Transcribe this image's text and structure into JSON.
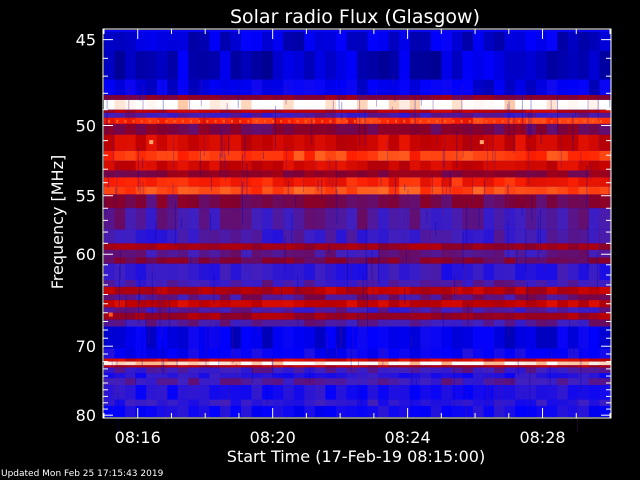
{
  "chart_data": {
    "type": "heatmap",
    "title": "Solar radio Flux (Glasgow)",
    "xlabel": "Start Time (17-Feb-19 08:15:00)",
    "ylabel": "Frequency [MHz]",
    "x_ticks": [
      "08:16",
      "08:20",
      "08:24",
      "08:28"
    ],
    "x_tick_minutes": [
      1,
      5,
      9,
      13
    ],
    "x_range_minutes": [
      0,
      15
    ],
    "y_ticks": [
      45,
      50,
      55,
      60,
      70,
      80
    ],
    "y_range_mhz": [
      44.5,
      80.3
    ],
    "y_scale": "reciprocal",
    "colormap": [
      "#000080",
      "#0000ff",
      "#4020c0",
      "#800030",
      "#c00000",
      "#ff2000",
      "#ff8030",
      "#ffffff"
    ],
    "background_level": 0.17,
    "bands": [
      {
        "f_start": 44.6,
        "f_end": 45.6,
        "level": 0.1
      },
      {
        "f_start": 45.6,
        "f_end": 47.2,
        "level": 0.08
      },
      {
        "f_start": 47.2,
        "f_end": 48.1,
        "level": 0.12
      },
      {
        "f_start": 48.1,
        "f_end": 48.4,
        "level": 0.45
      },
      {
        "f_start": 48.4,
        "f_end": 49.0,
        "level": 1.0
      },
      {
        "f_start": 49.0,
        "f_end": 49.2,
        "level": 0.55
      },
      {
        "f_start": 49.2,
        "f_end": 49.5,
        "level": 0.3
      },
      {
        "f_start": 49.5,
        "f_end": 49.9,
        "level": 0.72
      },
      {
        "f_start": 49.9,
        "f_end": 50.6,
        "level": 0.42
      },
      {
        "f_start": 50.6,
        "f_end": 51.7,
        "level": 0.6
      },
      {
        "f_start": 51.7,
        "f_end": 52.4,
        "level": 0.75
      },
      {
        "f_start": 52.4,
        "f_end": 53.1,
        "level": 0.6
      },
      {
        "f_start": 53.1,
        "f_end": 53.6,
        "level": 0.45
      },
      {
        "f_start": 53.6,
        "f_end": 54.3,
        "level": 0.7
      },
      {
        "f_start": 54.3,
        "f_end": 54.9,
        "level": 0.78
      },
      {
        "f_start": 54.9,
        "f_end": 56.0,
        "level": 0.4
      },
      {
        "f_start": 56.0,
        "f_end": 57.8,
        "level": 0.32
      },
      {
        "f_start": 57.8,
        "f_end": 59.0,
        "level": 0.28
      },
      {
        "f_start": 59.0,
        "f_end": 59.6,
        "level": 0.5
      },
      {
        "f_start": 59.6,
        "f_end": 60.3,
        "level": 0.33
      },
      {
        "f_start": 60.3,
        "f_end": 60.9,
        "level": 0.42
      },
      {
        "f_start": 60.9,
        "f_end": 62.5,
        "level": 0.25
      },
      {
        "f_start": 62.5,
        "f_end": 63.2,
        "level": 0.3
      },
      {
        "f_start": 63.2,
        "f_end": 64.0,
        "level": 0.55
      },
      {
        "f_start": 64.0,
        "f_end": 64.6,
        "level": 0.35
      },
      {
        "f_start": 64.6,
        "f_end": 65.4,
        "level": 0.58
      },
      {
        "f_start": 65.4,
        "f_end": 66.0,
        "level": 0.3
      },
      {
        "f_start": 66.0,
        "f_end": 66.8,
        "level": 0.5
      },
      {
        "f_start": 66.8,
        "f_end": 67.6,
        "level": 0.32
      },
      {
        "f_start": 67.6,
        "f_end": 70.3,
        "level": 0.12
      },
      {
        "f_start": 70.3,
        "f_end": 71.6,
        "level": 0.16
      },
      {
        "f_start": 71.6,
        "f_end": 72.0,
        "level": 0.6
      },
      {
        "f_start": 72.0,
        "f_end": 72.5,
        "level": 0.97
      },
      {
        "f_start": 72.5,
        "f_end": 72.8,
        "level": 0.55
      },
      {
        "f_start": 72.8,
        "f_end": 73.6,
        "level": 0.3
      },
      {
        "f_start": 73.6,
        "f_end": 74.3,
        "level": 0.22
      },
      {
        "f_start": 74.3,
        "f_end": 75.3,
        "level": 0.3
      },
      {
        "f_start": 75.3,
        "f_end": 77.5,
        "level": 0.2
      },
      {
        "f_start": 77.5,
        "f_end": 78.5,
        "level": 0.24
      },
      {
        "f_start": 78.5,
        "f_end": 80.3,
        "level": 0.18
      }
    ],
    "spots": [
      {
        "time_min": 1.4,
        "freq_mhz": 51.1,
        "level": 0.9
      },
      {
        "time_min": 11.2,
        "freq_mhz": 51.1,
        "level": 0.9
      },
      {
        "time_min": 0.2,
        "freq_mhz": 66.2,
        "level": 0.8
      }
    ]
  },
  "footer": {
    "updated": "Updated Mon Feb 25 17:15:43 2019"
  }
}
